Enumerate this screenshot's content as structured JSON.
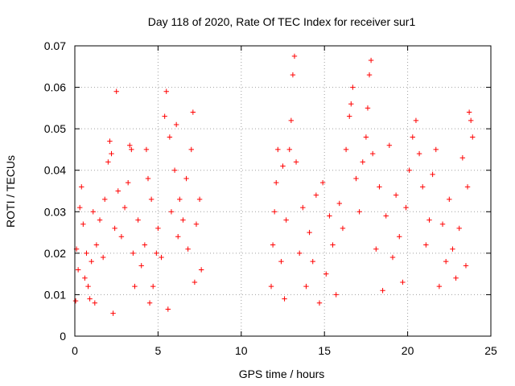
{
  "chart_data": {
    "type": "scatter",
    "title": "Day 118 of 2020, Rate Of TEC Index for receiver sur1",
    "xlabel": "GPS time / hours",
    "ylabel": "ROTI / TECUs",
    "xlim": [
      0,
      25
    ],
    "ylim": [
      0,
      0.07
    ],
    "x_ticks": [
      "0",
      "5",
      "10",
      "15",
      "20",
      "25"
    ],
    "y_ticks": [
      "0",
      "0.01",
      "0.02",
      "0.03",
      "0.04",
      "0.05",
      "0.06",
      "0.07"
    ],
    "grid": true,
    "marker": "+",
    "series_color": "#ff0000",
    "data_gap_hours": [
      7.7,
      11.7
    ],
    "series": [
      {
        "points": [
          [
            0.05,
            0.0085
          ],
          [
            0.1,
            0.021
          ],
          [
            0.2,
            0.016
          ],
          [
            0.3,
            0.031
          ],
          [
            0.4,
            0.036
          ],
          [
            0.5,
            0.027
          ],
          [
            0.6,
            0.014
          ],
          [
            0.7,
            0.02
          ],
          [
            0.8,
            0.012
          ],
          [
            0.9,
            0.009
          ],
          [
            1.0,
            0.018
          ],
          [
            1.1,
            0.03
          ],
          [
            1.2,
            0.008
          ],
          [
            1.3,
            0.022
          ],
          [
            1.5,
            0.028
          ],
          [
            1.7,
            0.019
          ],
          [
            1.8,
            0.033
          ],
          [
            2.0,
            0.042
          ],
          [
            2.1,
            0.047
          ],
          [
            2.2,
            0.044
          ],
          [
            2.3,
            0.0055
          ],
          [
            2.4,
            0.026
          ],
          [
            2.5,
            0.059
          ],
          [
            2.6,
            0.035
          ],
          [
            2.8,
            0.024
          ],
          [
            3.0,
            0.031
          ],
          [
            3.2,
            0.037
          ],
          [
            3.3,
            0.046
          ],
          [
            3.4,
            0.045
          ],
          [
            3.5,
            0.02
          ],
          [
            3.6,
            0.012
          ],
          [
            3.8,
            0.028
          ],
          [
            4.0,
            0.017
          ],
          [
            4.2,
            0.022
          ],
          [
            4.3,
            0.045
          ],
          [
            4.4,
            0.038
          ],
          [
            4.5,
            0.008
          ],
          [
            4.6,
            0.033
          ],
          [
            4.7,
            0.012
          ],
          [
            4.9,
            0.02
          ],
          [
            5.0,
            0.026
          ],
          [
            5.2,
            0.019
          ],
          [
            5.4,
            0.053
          ],
          [
            5.5,
            0.059
          ],
          [
            5.6,
            0.0065
          ],
          [
            5.7,
            0.048
          ],
          [
            5.8,
            0.03
          ],
          [
            6.0,
            0.04
          ],
          [
            6.1,
            0.051
          ],
          [
            6.2,
            0.024
          ],
          [
            6.3,
            0.033
          ],
          [
            6.5,
            0.028
          ],
          [
            6.7,
            0.038
          ],
          [
            6.8,
            0.021
          ],
          [
            7.0,
            0.045
          ],
          [
            7.1,
            0.054
          ],
          [
            7.2,
            0.013
          ],
          [
            7.3,
            0.027
          ],
          [
            7.5,
            0.033
          ],
          [
            7.6,
            0.016
          ],
          [
            11.8,
            0.012
          ],
          [
            11.9,
            0.022
          ],
          [
            12.0,
            0.03
          ],
          [
            12.1,
            0.037
          ],
          [
            12.2,
            0.045
          ],
          [
            12.4,
            0.018
          ],
          [
            12.5,
            0.041
          ],
          [
            12.6,
            0.009
          ],
          [
            12.7,
            0.028
          ],
          [
            12.9,
            0.045
          ],
          [
            13.0,
            0.052
          ],
          [
            13.1,
            0.063
          ],
          [
            13.2,
            0.0675
          ],
          [
            13.3,
            0.042
          ],
          [
            13.5,
            0.02
          ],
          [
            13.7,
            0.031
          ],
          [
            13.9,
            0.012
          ],
          [
            14.1,
            0.025
          ],
          [
            14.3,
            0.018
          ],
          [
            14.5,
            0.034
          ],
          [
            14.7,
            0.008
          ],
          [
            14.9,
            0.037
          ],
          [
            15.1,
            0.015
          ],
          [
            15.3,
            0.029
          ],
          [
            15.5,
            0.022
          ],
          [
            15.7,
            0.01
          ],
          [
            15.9,
            0.032
          ],
          [
            16.1,
            0.026
          ],
          [
            16.3,
            0.045
          ],
          [
            16.5,
            0.053
          ],
          [
            16.6,
            0.056
          ],
          [
            16.7,
            0.06
          ],
          [
            16.9,
            0.038
          ],
          [
            17.1,
            0.03
          ],
          [
            17.3,
            0.042
          ],
          [
            17.5,
            0.048
          ],
          [
            17.6,
            0.055
          ],
          [
            17.7,
            0.063
          ],
          [
            17.8,
            0.0665
          ],
          [
            17.9,
            0.044
          ],
          [
            18.1,
            0.021
          ],
          [
            18.3,
            0.036
          ],
          [
            18.5,
            0.011
          ],
          [
            18.7,
            0.029
          ],
          [
            18.9,
            0.046
          ],
          [
            19.1,
            0.019
          ],
          [
            19.3,
            0.034
          ],
          [
            19.5,
            0.024
          ],
          [
            19.7,
            0.013
          ],
          [
            19.9,
            0.031
          ],
          [
            20.1,
            0.04
          ],
          [
            20.3,
            0.048
          ],
          [
            20.5,
            0.052
          ],
          [
            20.7,
            0.044
          ],
          [
            20.9,
            0.036
          ],
          [
            21.1,
            0.022
          ],
          [
            21.3,
            0.028
          ],
          [
            21.5,
            0.039
          ],
          [
            21.7,
            0.045
          ],
          [
            21.9,
            0.012
          ],
          [
            22.1,
            0.027
          ],
          [
            22.3,
            0.018
          ],
          [
            22.5,
            0.033
          ],
          [
            22.7,
            0.021
          ],
          [
            22.9,
            0.014
          ],
          [
            23.1,
            0.026
          ],
          [
            23.3,
            0.043
          ],
          [
            23.5,
            0.017
          ],
          [
            23.6,
            0.036
          ],
          [
            23.7,
            0.054
          ],
          [
            23.8,
            0.052
          ],
          [
            23.9,
            0.048
          ]
        ]
      }
    ]
  }
}
